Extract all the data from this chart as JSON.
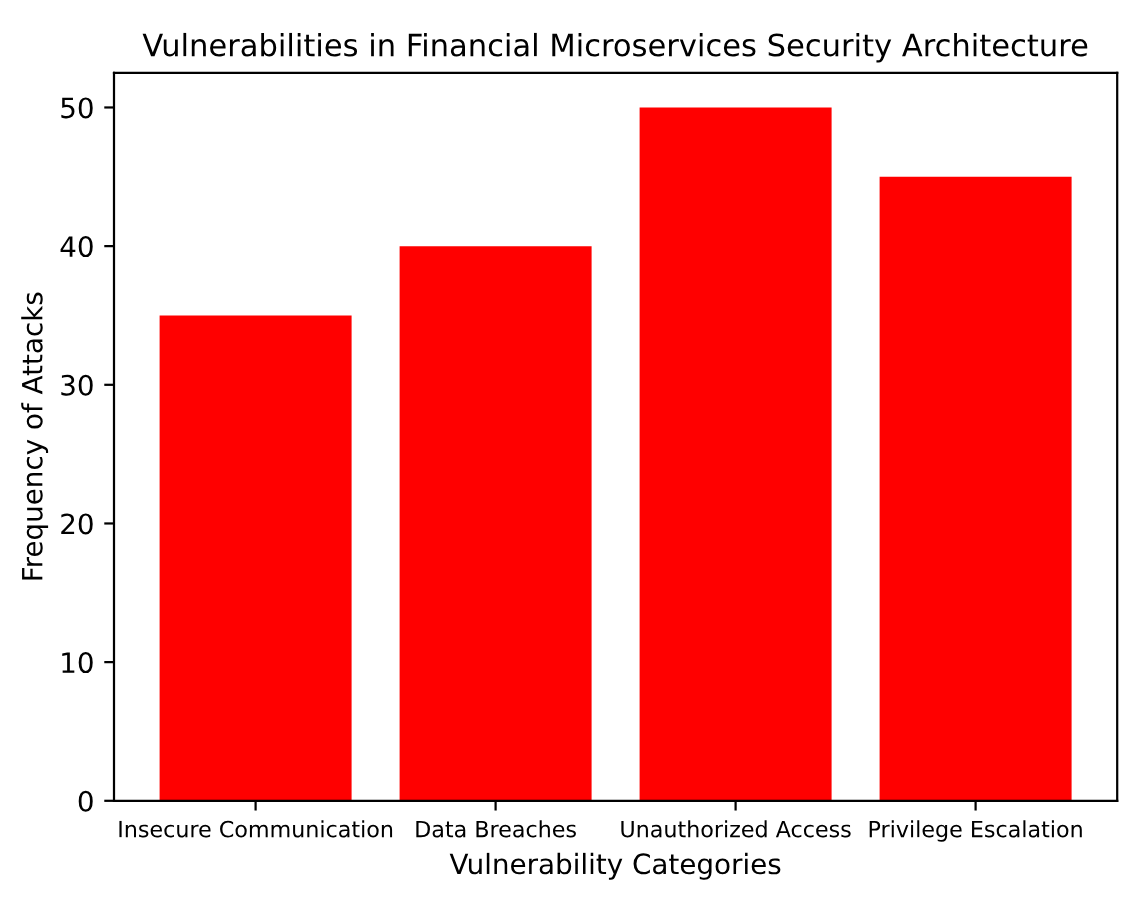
{
  "chart_data": {
    "type": "bar",
    "title": "Vulnerabilities in Financial Microservices Security Architecture",
    "xlabel": "Vulnerability Categories",
    "ylabel": "Frequency of Attacks",
    "categories": [
      "Insecure Communication",
      "Data Breaches",
      "Unauthorized Access",
      "Privilege Escalation"
    ],
    "values": [
      35,
      40,
      50,
      45
    ],
    "color": "#ff0000",
    "ylim": [
      0,
      52.5
    ],
    "yticks": [
      0,
      10,
      20,
      30,
      40,
      50
    ],
    "grid": false
  }
}
